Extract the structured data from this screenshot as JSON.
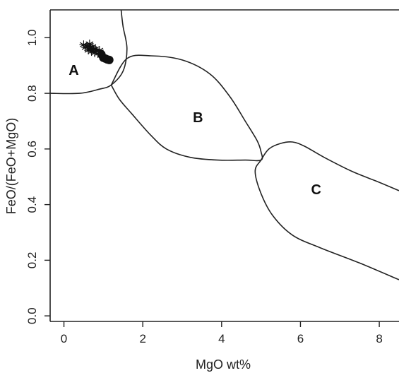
{
  "chart_data": {
    "type": "scatter",
    "title": "",
    "xlabel": "MgO wt%",
    "ylabel": "FeO/(FeO+MgO)",
    "xlim": [
      -0.35,
      8.5
    ],
    "ylim": [
      -0.02,
      1.1
    ],
    "x_ticks": [
      0,
      2,
      4,
      6,
      8
    ],
    "x_tick_labels": [
      "0",
      "2",
      "4",
      "6",
      "8"
    ],
    "y_ticks": [
      0.0,
      0.2,
      0.4,
      0.6,
      0.8,
      1.0
    ],
    "y_tick_labels": [
      "0.0",
      "0.2",
      "0.4",
      "0.6",
      "0.8",
      "1.0"
    ],
    "grid": false,
    "fields": [
      {
        "label": "A",
        "label_at": [
          0.25,
          0.88
        ],
        "boundary": [
          [
            -0.35,
            0.8
          ],
          [
            0.4,
            0.8
          ],
          [
            0.9,
            0.815
          ],
          [
            1.2,
            0.83
          ],
          [
            1.5,
            0.88
          ],
          [
            1.6,
            0.96
          ],
          [
            1.5,
            1.04
          ],
          [
            1.45,
            1.1
          ]
        ]
      },
      {
        "label": "B",
        "label_at": [
          3.4,
          0.71
        ],
        "boundary": [
          [
            1.2,
            0.83
          ],
          [
            1.6,
            0.925
          ],
          [
            2.2,
            0.935
          ],
          [
            3.0,
            0.92
          ],
          [
            3.7,
            0.87
          ],
          [
            4.2,
            0.79
          ],
          [
            4.6,
            0.7
          ],
          [
            4.9,
            0.63
          ],
          [
            5.0,
            0.59
          ],
          [
            5.0,
            0.56
          ],
          [
            4.6,
            0.56
          ],
          [
            3.9,
            0.56
          ],
          [
            3.2,
            0.57
          ],
          [
            2.6,
            0.6
          ],
          [
            2.2,
            0.65
          ],
          [
            1.7,
            0.73
          ],
          [
            1.4,
            0.78
          ],
          [
            1.2,
            0.83
          ]
        ]
      },
      {
        "label": "C",
        "label_at": [
          6.4,
          0.45
        ],
        "boundary": [
          [
            8.5,
            0.45
          ],
          [
            8.0,
            0.48
          ],
          [
            7.3,
            0.52
          ],
          [
            6.6,
            0.57
          ],
          [
            6.1,
            0.61
          ],
          [
            5.8,
            0.625
          ],
          [
            5.5,
            0.62
          ],
          [
            5.2,
            0.6
          ],
          [
            5.0,
            0.56
          ],
          [
            4.85,
            0.52
          ],
          [
            5.0,
            0.44
          ],
          [
            5.3,
            0.36
          ],
          [
            5.8,
            0.29
          ],
          [
            6.5,
            0.245
          ],
          [
            7.5,
            0.19
          ],
          [
            8.5,
            0.13
          ]
        ]
      }
    ],
    "series": [
      {
        "marker": "asterisk",
        "points": [
          [
            0.5,
            0.975
          ],
          [
            0.55,
            0.965
          ],
          [
            0.6,
            0.97
          ],
          [
            0.62,
            0.955
          ],
          [
            0.65,
            0.978
          ],
          [
            0.68,
            0.962
          ],
          [
            0.7,
            0.95
          ],
          [
            0.72,
            0.968
          ],
          [
            0.75,
            0.958
          ],
          [
            0.78,
            0.945
          ],
          [
            0.8,
            0.96
          ],
          [
            0.82,
            0.952
          ],
          [
            0.86,
            0.943
          ],
          [
            0.9,
            0.955
          ]
        ]
      },
      {
        "marker": "circle",
        "points": [
          [
            0.95,
            0.94
          ],
          [
            1.0,
            0.928
          ],
          [
            1.05,
            0.925
          ],
          [
            1.1,
            0.922
          ],
          [
            1.15,
            0.92
          ]
        ]
      }
    ]
  }
}
